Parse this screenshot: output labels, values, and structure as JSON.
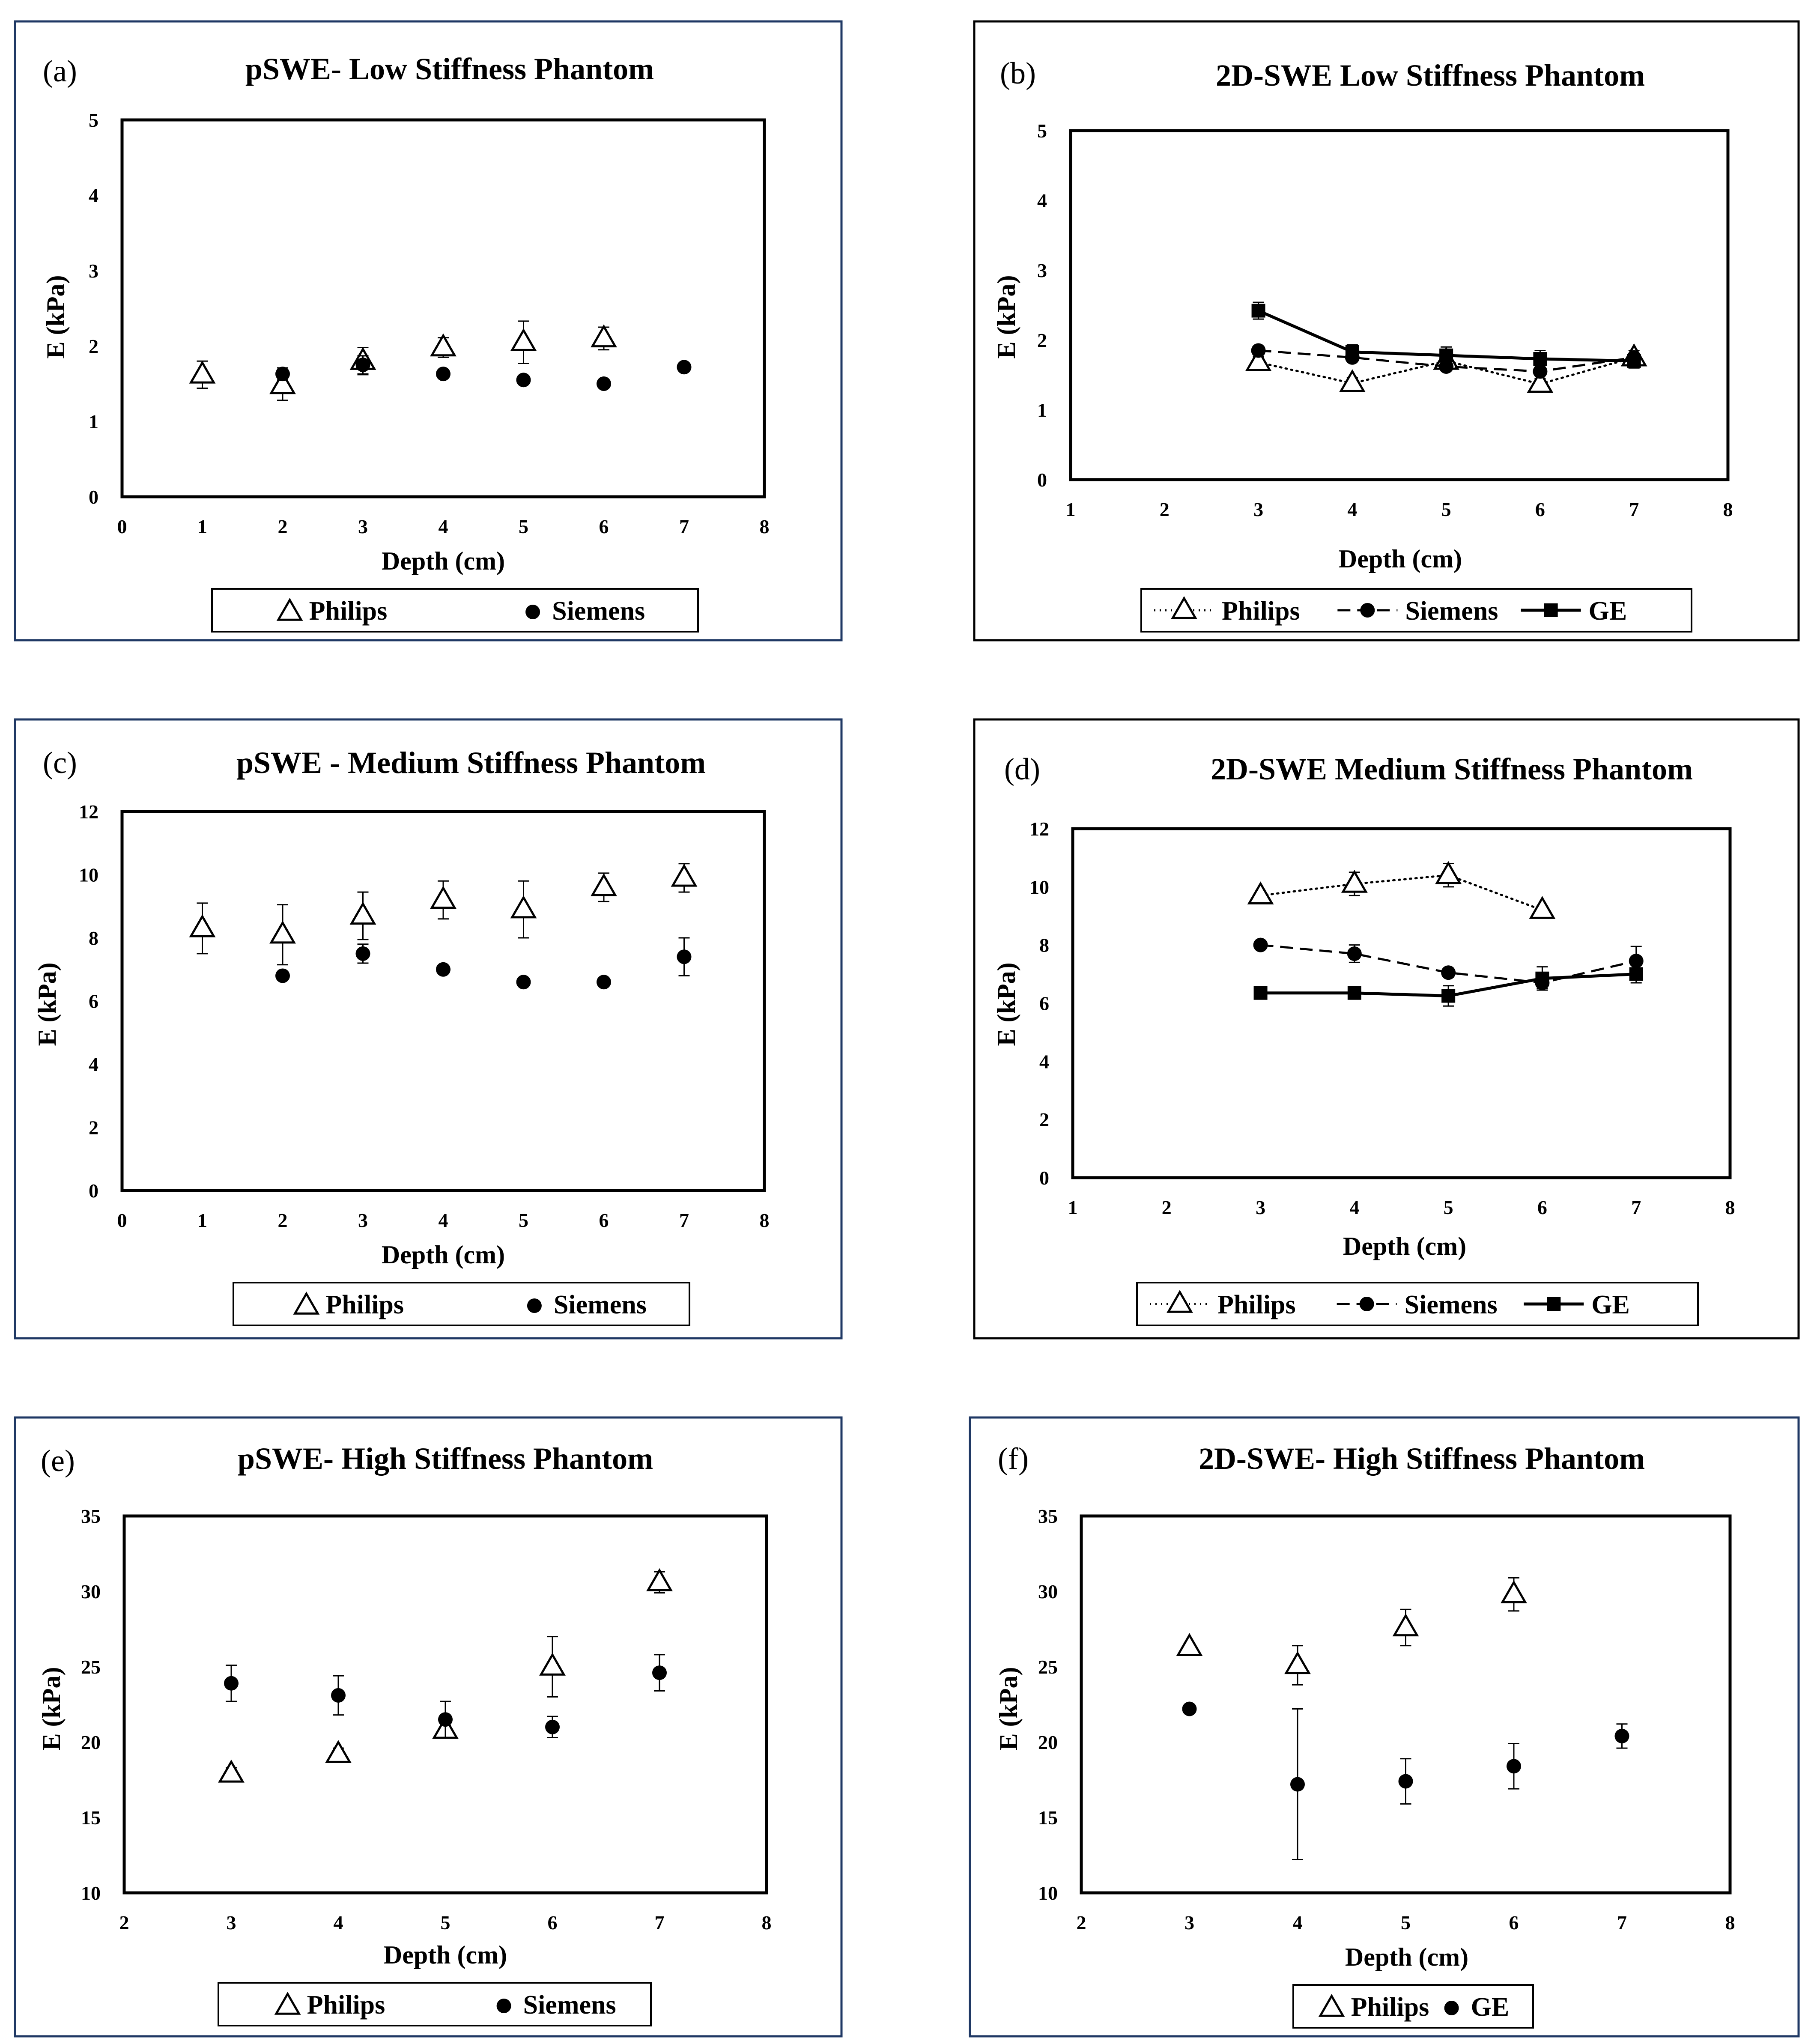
{
  "chart_data": [
    {
      "id": "a",
      "letter": "(a)",
      "title": "pSWE- Low Stiffness Phantom",
      "type": "scatter",
      "frame_color": "#1F3864",
      "xlabel": "Depth (cm)",
      "ylabel": "E (kPa)",
      "xlim": [
        0,
        8
      ],
      "ylim": [
        0,
        5
      ],
      "xticks": [
        0,
        1,
        2,
        3,
        4,
        5,
        6,
        7,
        8
      ],
      "yticks": [
        0,
        1,
        2,
        3,
        4,
        5
      ],
      "series": [
        {
          "name": "Philips",
          "marker": "triangle",
          "line": "none",
          "x": [
            1,
            2,
            3,
            4,
            5,
            6
          ],
          "y": [
            1.62,
            1.48,
            1.8,
            1.98,
            2.05,
            2.1
          ],
          "err": [
            0.18,
            0.2,
            0.18,
            0.13,
            0.28,
            0.15
          ]
        },
        {
          "name": "Siemens",
          "marker": "circle",
          "line": "none",
          "x": [
            2,
            3,
            4,
            5,
            6,
            7
          ],
          "y": [
            1.63,
            1.75,
            1.63,
            1.55,
            1.5,
            1.72
          ],
          "err": [
            0.08,
            0.12,
            0,
            0,
            0,
            0
          ]
        }
      ],
      "legend": [
        {
          "label": "Philips",
          "symbol": "triangle",
          "line": "none"
        },
        {
          "label": "Siemens",
          "symbol": "circle",
          "line": "none"
        }
      ]
    },
    {
      "id": "b",
      "letter": "(b)",
      "title": "2D-SWE Low Stiffness Phantom",
      "type": "line",
      "frame_color": "#000000",
      "xlabel": "Depth (cm)",
      "ylabel": "E (kPa)",
      "xlim": [
        1,
        8
      ],
      "ylim": [
        0,
        5
      ],
      "xticks": [
        1,
        2,
        3,
        4,
        5,
        6,
        7,
        8
      ],
      "yticks": [
        0,
        1,
        2,
        3,
        4,
        5
      ],
      "series": [
        {
          "name": "Philips",
          "marker": "triangle",
          "line": "dotted",
          "x": [
            3,
            4,
            5,
            6,
            7
          ],
          "y": [
            1.68,
            1.38,
            1.7,
            1.37,
            1.75
          ],
          "err": [
            0.08,
            0.08,
            0.08,
            0.08,
            0.1
          ]
        },
        {
          "name": "Siemens",
          "marker": "circle",
          "line": "dashed",
          "x": [
            3,
            4,
            5,
            6,
            7
          ],
          "y": [
            1.85,
            1.75,
            1.62,
            1.55,
            1.75
          ],
          "err": [
            0.05,
            0.05,
            0.05,
            0.06,
            0.05
          ]
        },
        {
          "name": "GE",
          "marker": "square",
          "line": "solid",
          "x": [
            3,
            4,
            5,
            6,
            7
          ],
          "y": [
            2.42,
            1.83,
            1.78,
            1.73,
            1.7
          ],
          "err": [
            0.12,
            0.1,
            0.12,
            0.12,
            0.1
          ]
        }
      ],
      "legend": [
        {
          "label": "Philips",
          "symbol": "triangle",
          "line": "dotted"
        },
        {
          "label": "Siemens",
          "symbol": "circle",
          "line": "dashed"
        },
        {
          "label": "GE",
          "symbol": "square",
          "line": "solid"
        }
      ]
    },
    {
      "id": "c",
      "letter": "(c)",
      "title": "pSWE - Medium Stiffness Phantom",
      "type": "scatter",
      "frame_color": "#1F3864",
      "xlabel": "Depth (cm)",
      "ylabel": "E (kPa)",
      "xlim": [
        0,
        8
      ],
      "ylim": [
        0,
        12
      ],
      "xticks": [
        0,
        1,
        2,
        3,
        4,
        5,
        6,
        7,
        8
      ],
      "yticks": [
        0,
        2,
        4,
        6,
        8,
        10,
        12
      ],
      "series": [
        {
          "name": "Philips",
          "marker": "triangle",
          "line": "none",
          "x": [
            1,
            2,
            3,
            4,
            5,
            6,
            7
          ],
          "y": [
            8.3,
            8.1,
            8.7,
            9.2,
            8.9,
            9.6,
            9.9
          ],
          "err": [
            0.8,
            0.95,
            0.75,
            0.6,
            0.9,
            0.45,
            0.45
          ]
        },
        {
          "name": "Siemens",
          "marker": "circle",
          "line": "none",
          "x": [
            2,
            3,
            4,
            5,
            6,
            7
          ],
          "y": [
            6.8,
            7.5,
            7.0,
            6.6,
            6.6,
            7.4
          ],
          "err": [
            0,
            0.3,
            0,
            0,
            0,
            0.6
          ]
        }
      ],
      "legend": [
        {
          "label": "Philips",
          "symbol": "triangle",
          "line": "none"
        },
        {
          "label": "Siemens",
          "symbol": "circle",
          "line": "none"
        }
      ]
    },
    {
      "id": "d",
      "letter": "(d)",
      "title": "2D-SWE Medium Stiffness Phantom",
      "type": "line",
      "frame_color": "#000000",
      "xlabel": "Depth (cm)",
      "ylabel": "E (kPa)",
      "xlim": [
        1,
        8
      ],
      "ylim": [
        0,
        12
      ],
      "xticks": [
        1,
        2,
        3,
        4,
        5,
        6,
        7,
        8
      ],
      "yticks": [
        0,
        2,
        4,
        6,
        8,
        10,
        12
      ],
      "series": [
        {
          "name": "Philips",
          "marker": "triangle",
          "line": "dotted",
          "x": [
            3,
            4,
            5,
            6
          ],
          "y": [
            9.7,
            10.1,
            10.4,
            9.2
          ],
          "err": [
            0.15,
            0.4,
            0.4,
            0.15
          ]
        },
        {
          "name": "Siemens",
          "marker": "circle",
          "line": "dashed",
          "x": [
            3,
            4,
            5,
            6,
            7
          ],
          "y": [
            8.0,
            7.7,
            7.05,
            6.7,
            7.45
          ],
          "err": [
            0.1,
            0.3,
            0.15,
            0.2,
            0.5
          ]
        },
        {
          "name": "GE",
          "marker": "square",
          "line": "solid",
          "x": [
            3,
            4,
            5,
            6,
            7
          ],
          "y": [
            6.35,
            6.35,
            6.25,
            6.85,
            7.0
          ],
          "err": [
            0.1,
            0.15,
            0.35,
            0.4,
            0.3
          ]
        }
      ],
      "legend": [
        {
          "label": "Philips",
          "symbol": "triangle",
          "line": "dotted"
        },
        {
          "label": "Siemens",
          "symbol": "circle",
          "line": "dashed"
        },
        {
          "label": "GE",
          "symbol": "square",
          "line": "solid"
        }
      ]
    },
    {
      "id": "e",
      "letter": "(e)",
      "title": "pSWE- High  Stiffness Phantom",
      "type": "scatter",
      "frame_color": "#1F3864",
      "xlabel": "Depth (cm)",
      "ylabel": "E (kPa)",
      "xlim": [
        2,
        8
      ],
      "ylim": [
        10,
        35
      ],
      "xticks": [
        2,
        3,
        4,
        5,
        6,
        7,
        8
      ],
      "yticks": [
        10,
        15,
        20,
        25,
        30,
        35
      ],
      "series": [
        {
          "name": "Philips",
          "marker": "triangle",
          "line": "none",
          "x": [
            3,
            4,
            5,
            6,
            7
          ],
          "y": [
            17.9,
            19.2,
            20.8,
            25.0,
            30.6
          ],
          "err": [
            0.4,
            0.4,
            0.3,
            2.0,
            0.7
          ]
        },
        {
          "name": "Siemens",
          "marker": "circle",
          "line": "none",
          "x": [
            3,
            4,
            5,
            6,
            7
          ],
          "y": [
            23.9,
            23.1,
            21.5,
            21.0,
            24.6
          ],
          "err": [
            1.2,
            1.3,
            1.2,
            0.7,
            1.2
          ]
        }
      ],
      "legend": [
        {
          "label": "Philips",
          "symbol": "triangle",
          "line": "none"
        },
        {
          "label": "Siemens",
          "symbol": "circle",
          "line": "none"
        }
      ]
    },
    {
      "id": "f",
      "letter": "(f)",
      "title": "2D-SWE- High  Stiffness Phantom",
      "type": "scatter",
      "frame_color": "#1F3864",
      "xlabel": "Depth (cm)",
      "ylabel": "E (kPa)",
      "xlim": [
        2,
        8
      ],
      "ylim": [
        10,
        35
      ],
      "xticks": [
        2,
        3,
        4,
        5,
        6,
        7,
        8
      ],
      "yticks": [
        10,
        15,
        20,
        25,
        30,
        35
      ],
      "series": [
        {
          "name": "Philips",
          "marker": "triangle",
          "line": "none",
          "x": [
            3,
            4,
            5,
            6
          ],
          "y": [
            26.3,
            25.1,
            27.6,
            29.8
          ],
          "err": [
            0.3,
            1.3,
            1.2,
            1.1
          ]
        },
        {
          "name": "GE",
          "marker": "circle",
          "line": "none",
          "x": [
            3,
            4,
            5,
            6,
            7
          ],
          "y": [
            22.2,
            17.2,
            17.4,
            18.4,
            20.4
          ],
          "err": [
            0,
            5.0,
            1.5,
            1.5,
            0.8
          ]
        }
      ],
      "legend": [
        {
          "label": "Philips",
          "symbol": "triangle",
          "line": "none"
        },
        {
          "label": "GE",
          "symbol": "circle",
          "line": "none"
        }
      ]
    }
  ]
}
